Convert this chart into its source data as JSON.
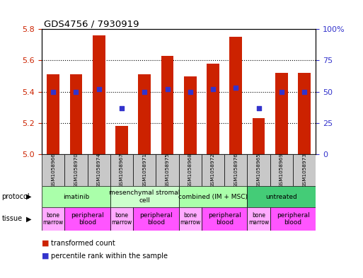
{
  "title": "GDS4756 / 7930919",
  "samples": [
    "GSM1058966",
    "GSM1058970",
    "GSM1058974",
    "GSM1058967",
    "GSM1058971",
    "GSM1058975",
    "GSM1058968",
    "GSM1058972",
    "GSM1058976",
    "GSM1058965",
    "GSM1058969",
    "GSM1058973"
  ],
  "bar_values": [
    5.51,
    5.51,
    5.76,
    5.18,
    5.51,
    5.63,
    5.5,
    5.58,
    5.75,
    5.23,
    5.52,
    5.52
  ],
  "percentile_values": [
    50,
    50,
    52,
    37,
    50,
    52,
    50,
    52,
    53,
    37,
    50,
    50
  ],
  "ylim_left": [
    5.0,
    5.8
  ],
  "ylim_right": [
    0,
    100
  ],
  "yticks_left": [
    5.0,
    5.2,
    5.4,
    5.6,
    5.8
  ],
  "yticks_right": [
    0,
    25,
    50,
    75,
    100
  ],
  "ytick_labels_right": [
    "0",
    "25",
    "50",
    "75",
    "100%"
  ],
  "bar_color": "#cc2200",
  "square_color": "#3333cc",
  "protocols": [
    {
      "label": "imatinib",
      "start": 0,
      "end": 3,
      "color": "#aaffaa"
    },
    {
      "label": "mesenchymal stromal\ncell",
      "start": 3,
      "end": 6,
      "color": "#ccffcc"
    },
    {
      "label": "combined (IM + MSC)",
      "start": 6,
      "end": 9,
      "color": "#aaffaa"
    },
    {
      "label": "untreated",
      "start": 9,
      "end": 12,
      "color": "#44cc77"
    }
  ],
  "tissues": [
    {
      "label": "bone\nmarrow",
      "start": 0,
      "end": 1,
      "color": "#ffaaff"
    },
    {
      "label": "peripheral\nblood",
      "start": 1,
      "end": 3,
      "color": "#ff55ff"
    },
    {
      "label": "bone\nmarrow",
      "start": 3,
      "end": 4,
      "color": "#ffaaff"
    },
    {
      "label": "peripheral\nblood",
      "start": 4,
      "end": 6,
      "color": "#ff55ff"
    },
    {
      "label": "bone\nmarrow",
      "start": 6,
      "end": 7,
      "color": "#ffaaff"
    },
    {
      "label": "peripheral\nblood",
      "start": 7,
      "end": 9,
      "color": "#ff55ff"
    },
    {
      "label": "bone\nmarrow",
      "start": 9,
      "end": 10,
      "color": "#ffaaff"
    },
    {
      "label": "peripheral\nblood",
      "start": 10,
      "end": 12,
      "color": "#ff55ff"
    }
  ],
  "legend_items": [
    {
      "label": "transformed count",
      "color": "#cc2200"
    },
    {
      "label": "percentile rank within the sample",
      "color": "#3333cc"
    }
  ],
  "grid_yticks": [
    5.2,
    5.4,
    5.6
  ]
}
